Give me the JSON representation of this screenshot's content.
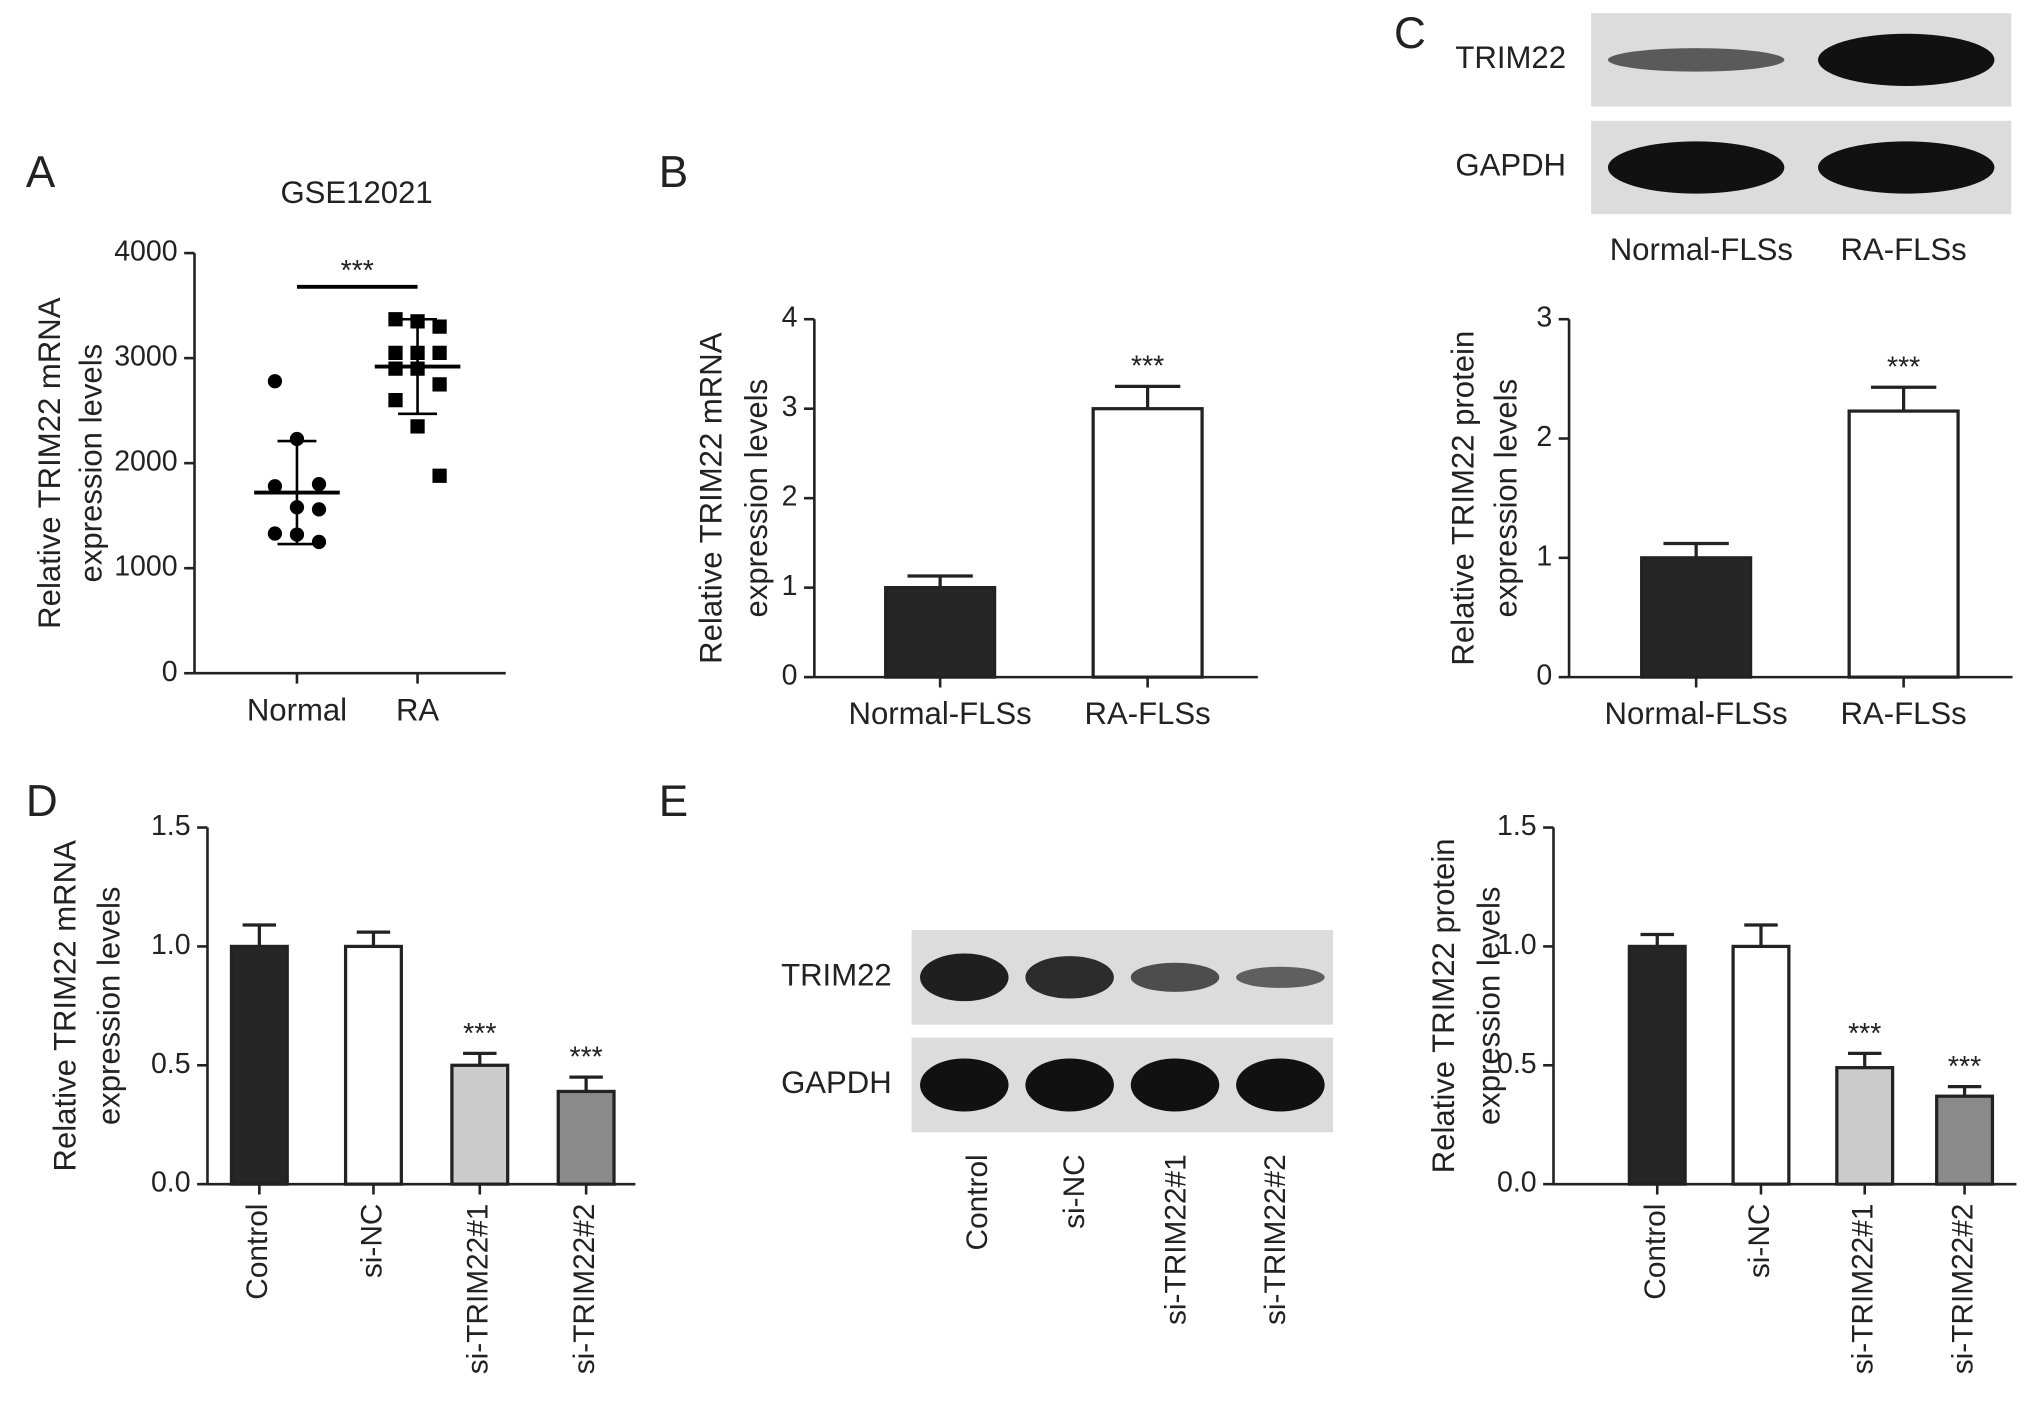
{
  "chart_data": [
    {
      "type": "scatter",
      "panel": "A",
      "title": "GSE12021",
      "ylabel": [
        "Relative TRIM22 mRNA",
        "expression levels"
      ],
      "categories": [
        "Normal",
        "RA"
      ],
      "values": [
        [
          2780,
          2230,
          1800,
          1780,
          1580,
          1560,
          1330,
          1320,
          1250
        ],
        [
          3370,
          3350,
          3300,
          3050,
          3050,
          3050,
          2900,
          2900,
          2750,
          2600,
          2350,
          1880
        ]
      ],
      "mean": [
        1720,
        2920
      ],
      "sd": [
        490,
        450
      ],
      "color": "#000000",
      "ylim": [
        0,
        4000
      ],
      "yticks": [
        0,
        1000,
        2000,
        3000,
        4000
      ],
      "significance": "***"
    },
    {
      "type": "bar",
      "panel": "B",
      "ylabel": [
        "Relative TRIM22 mRNA",
        "expression levels"
      ],
      "categories": [
        "Normal-FLSs",
        "RA-FLSs"
      ],
      "values": [
        1.0,
        3.0
      ],
      "errors": [
        0.13,
        0.25
      ],
      "colors": [
        "#262626",
        "#ffffff"
      ],
      "significance": [
        null,
        "***"
      ],
      "ylim": [
        0,
        4
      ],
      "yticks": [
        0,
        1,
        2,
        3,
        4
      ]
    },
    {
      "type": "blot",
      "panel": "C",
      "rows": [
        "TRIM22",
        "GAPDH"
      ],
      "lanes": [
        "Normal-FLSs",
        "RA-FLSs"
      ]
    },
    {
      "type": "bar",
      "ylabel": [
        "Relative TRIM22 protein",
        "expression levels"
      ],
      "categories": [
        "Normal-FLSs",
        "RA-FLSs"
      ],
      "values": [
        1.0,
        2.23
      ],
      "errors": [
        0.12,
        0.2
      ],
      "colors": [
        "#262626",
        "#ffffff"
      ],
      "significance": [
        null,
        "***"
      ],
      "ylim": [
        0,
        3
      ],
      "yticks": [
        0,
        1,
        2,
        3
      ]
    },
    {
      "type": "bar",
      "panel": "D",
      "ylabel": [
        "Relative TRIM22 mRNA",
        "expression levels"
      ],
      "categories": [
        "Control",
        "si-NC",
        "si-TRIM22#1",
        "si-TRIM22#2"
      ],
      "values": [
        1.0,
        1.0,
        0.5,
        0.39
      ],
      "errors": [
        0.09,
        0.06,
        0.05,
        0.06
      ],
      "colors": [
        "#262626",
        "#ffffff",
        "#cccccc",
        "#8a8a8a"
      ],
      "significance": [
        null,
        null,
        "***",
        "***"
      ],
      "ylim": [
        0,
        1.5
      ],
      "yticks": [
        {
          "value": 0,
          "label": "0.0"
        },
        0.5,
        {
          "value": 1,
          "label": "1.0"
        },
        1.5
      ]
    },
    {
      "type": "blot",
      "panel": "E",
      "rows": [
        "TRIM22",
        "GAPDH"
      ],
      "lanes": [
        "Control",
        "si-NC",
        "si-TRIM22#1",
        "si-TRIM22#2"
      ]
    },
    {
      "type": "bar",
      "ylabel": [
        "Relative TRIM22 protein",
        "expression levels"
      ],
      "categories": [
        "Control",
        "si-NC",
        "si-TRIM22#1",
        "si-TRIM22#2"
      ],
      "values": [
        1.0,
        1.0,
        0.49,
        0.37
      ],
      "errors": [
        0.05,
        0.09,
        0.06,
        0.04
      ],
      "colors": [
        "#262626",
        "#ffffff",
        "#cccccc",
        "#8a8a8a"
      ],
      "significance": [
        null,
        null,
        "***",
        "***"
      ],
      "ylim": [
        0,
        1.5
      ],
      "yticks": [
        {
          "value": 0,
          "label": "0.0"
        },
        0.5,
        {
          "value": 1,
          "label": "1.0"
        },
        1.5
      ]
    }
  ]
}
